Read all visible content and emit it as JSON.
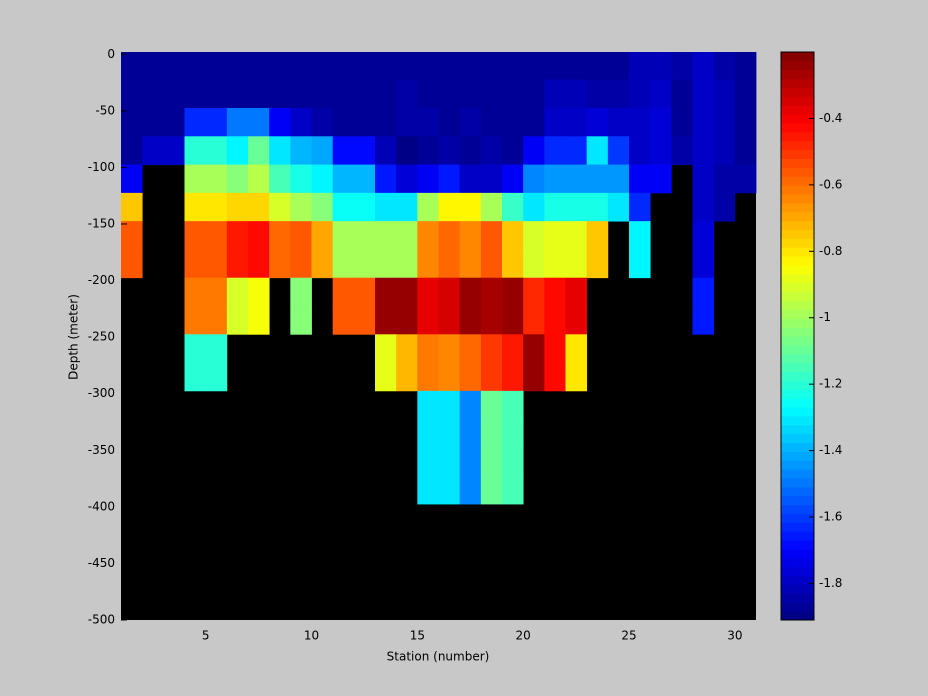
{
  "chart_data": {
    "type": "heatmap",
    "x_label": "Station (number)",
    "y_label": "Depth (meter)",
    "x": [
      1,
      2,
      3,
      4,
      5,
      6,
      7,
      8,
      9,
      10,
      11,
      12,
      13,
      14,
      15,
      16,
      17,
      18,
      19,
      20,
      21,
      22,
      23,
      24,
      25,
      26,
      27,
      28,
      29,
      30
    ],
    "y": [
      -10,
      -35,
      -60,
      -85,
      -110,
      -135,
      -160,
      -185,
      -210,
      -235,
      -260,
      -285,
      -310,
      -335,
      -360,
      -385
    ],
    "values": [
      [
        -1.87,
        -1.87,
        -1.87,
        -1.87,
        -1.87,
        -1.87,
        -1.87,
        -1.87,
        -1.87,
        -1.87,
        -1.87,
        -1.87,
        -1.87,
        -1.87,
        -1.87,
        -1.87,
        -1.87,
        -1.87,
        -1.87,
        -1.87,
        -1.87,
        -1.87,
        -1.87,
        -1.87,
        -1.82,
        -1.82,
        -1.85,
        -1.78,
        -1.84,
        -1.87
      ],
      [
        -1.87,
        -1.87,
        -1.87,
        -1.87,
        -1.87,
        -1.87,
        -1.87,
        -1.87,
        -1.87,
        -1.87,
        -1.87,
        -1.87,
        -1.87,
        -1.83,
        -1.86,
        -1.86,
        -1.86,
        -1.86,
        -1.86,
        -1.86,
        -1.82,
        -1.82,
        -1.85,
        -1.83,
        -1.82,
        -1.8,
        -1.86,
        -1.78,
        -1.82,
        -1.87
      ],
      [
        -1.87,
        -1.87,
        -1.87,
        -1.62,
        -1.62,
        -1.5,
        -1.5,
        -1.7,
        -1.8,
        -1.85,
        -1.87,
        -1.87,
        -1.87,
        -1.83,
        -1.85,
        -1.87,
        -1.83,
        -1.87,
        -1.87,
        -1.87,
        -1.78,
        -1.8,
        -1.75,
        -1.8,
        -1.8,
        -1.75,
        -1.86,
        -1.78,
        -1.82,
        -1.87
      ],
      [
        -1.87,
        -1.78,
        -1.78,
        -1.2,
        -1.2,
        -1.28,
        -1.1,
        -1.3,
        -1.38,
        -1.42,
        -1.68,
        -1.68,
        -1.82,
        -1.9,
        -1.88,
        -1.85,
        -1.88,
        -1.84,
        -1.87,
        -1.7,
        -1.62,
        -1.62,
        -1.32,
        -1.6,
        -1.8,
        -1.75,
        -1.84,
        -1.78,
        -1.82,
        -1.87
      ],
      [
        -1.72,
        null,
        null,
        -1.0,
        -1.0,
        -1.05,
        -0.95,
        -1.15,
        -1.22,
        -1.28,
        -1.38,
        -1.38,
        -1.65,
        -1.75,
        -1.7,
        -1.65,
        -1.78,
        -1.78,
        -1.7,
        -1.48,
        -1.45,
        -1.45,
        -1.45,
        -1.45,
        -1.7,
        -1.7,
        null,
        -1.8,
        -1.84,
        -1.85
      ],
      [
        -0.75,
        null,
        null,
        -0.8,
        -0.8,
        -0.78,
        -0.78,
        -0.9,
        -1.0,
        -1.05,
        -1.25,
        -1.25,
        -1.32,
        -1.32,
        -1.0,
        -0.82,
        -0.82,
        -1.0,
        -1.18,
        -1.3,
        -1.22,
        -1.22,
        -1.22,
        -1.3,
        -1.62,
        null,
        null,
        -1.8,
        -1.84,
        null
      ],
      [
        -0.55,
        null,
        null,
        -0.55,
        -0.55,
        -0.45,
        -0.42,
        -0.6,
        -0.55,
        -0.7,
        -1.0,
        -1.0,
        -1.0,
        -1.0,
        -0.65,
        -0.58,
        -0.65,
        -0.55,
        -0.75,
        -0.9,
        -0.88,
        -0.88,
        -0.75,
        null,
        -1.28,
        null,
        null,
        -1.75,
        null,
        null
      ],
      [
        -0.55,
        null,
        null,
        -0.55,
        -0.55,
        -0.45,
        -0.42,
        -0.6,
        -0.55,
        -0.7,
        -1.0,
        -1.0,
        -1.0,
        -1.0,
        -0.65,
        -0.58,
        -0.65,
        -0.55,
        -0.75,
        -0.9,
        -0.88,
        -0.88,
        -0.75,
        null,
        -1.28,
        null,
        null,
        -1.75,
        null,
        null
      ],
      [
        null,
        null,
        null,
        -0.62,
        -0.62,
        -0.92,
        -0.85,
        null,
        -1.05,
        null,
        -0.55,
        -0.55,
        -0.25,
        -0.25,
        -0.38,
        -0.35,
        -0.25,
        -0.28,
        -0.25,
        -0.48,
        -0.42,
        -0.38,
        null,
        null,
        null,
        null,
        null,
        -1.65,
        null,
        null
      ],
      [
        null,
        null,
        null,
        -0.62,
        -0.62,
        -0.92,
        -0.85,
        null,
        -1.05,
        null,
        -0.55,
        -0.55,
        -0.25,
        -0.25,
        -0.38,
        -0.35,
        -0.25,
        -0.28,
        -0.25,
        -0.48,
        -0.42,
        -0.38,
        null,
        null,
        null,
        null,
        null,
        -1.65,
        null,
        null
      ],
      [
        null,
        null,
        null,
        -1.2,
        -1.2,
        null,
        null,
        null,
        null,
        null,
        null,
        null,
        -0.88,
        -0.72,
        -0.62,
        -0.65,
        -0.6,
        -0.52,
        -0.45,
        -0.25,
        -0.42,
        -0.8,
        null,
        null,
        null,
        null,
        null,
        null,
        null,
        null
      ],
      [
        null,
        null,
        null,
        -1.2,
        -1.2,
        null,
        null,
        null,
        null,
        null,
        null,
        null,
        -0.88,
        -0.72,
        -0.62,
        -0.65,
        -0.6,
        -0.52,
        -0.45,
        -0.25,
        -0.42,
        -0.8,
        null,
        null,
        null,
        null,
        null,
        null,
        null,
        null
      ],
      [
        null,
        null,
        null,
        null,
        null,
        null,
        null,
        null,
        null,
        null,
        null,
        null,
        null,
        null,
        -1.3,
        -1.32,
        -1.48,
        -1.1,
        -1.15,
        null,
        null,
        null,
        null,
        null,
        null,
        null,
        null,
        null,
        null,
        null
      ],
      [
        null,
        null,
        null,
        null,
        null,
        null,
        null,
        null,
        null,
        null,
        null,
        null,
        null,
        null,
        -1.3,
        -1.32,
        -1.48,
        -1.1,
        -1.15,
        null,
        null,
        null,
        null,
        null,
        null,
        null,
        null,
        null,
        null,
        null
      ],
      [
        null,
        null,
        null,
        null,
        null,
        null,
        null,
        null,
        null,
        null,
        null,
        null,
        null,
        null,
        -1.3,
        -1.32,
        -1.48,
        -1.1,
        -1.15,
        null,
        null,
        null,
        null,
        null,
        null,
        null,
        null,
        null,
        null,
        null
      ],
      [
        null,
        null,
        null,
        null,
        null,
        null,
        null,
        null,
        null,
        null,
        null,
        null,
        null,
        null,
        -1.3,
        -1.32,
        -1.48,
        -1.1,
        -1.15,
        null,
        null,
        null,
        null,
        null,
        null,
        null,
        null,
        null,
        null,
        null
      ]
    ],
    "xlim": [
      1,
      31
    ],
    "ylim": [
      -500,
      2
    ],
    "xticks": [
      5,
      10,
      15,
      20,
      25,
      30
    ],
    "yticks": [
      0,
      -50,
      -100,
      -150,
      -200,
      -250,
      -300,
      -350,
      -400,
      -450,
      -500
    ],
    "clim": [
      -1.91,
      -0.2
    ],
    "cticks": [
      -1.8,
      -1.6,
      -1.4,
      -1.2,
      -1,
      -0.8,
      -0.6,
      -0.4
    ],
    "colormap": "jet",
    "background": "#000000"
  }
}
